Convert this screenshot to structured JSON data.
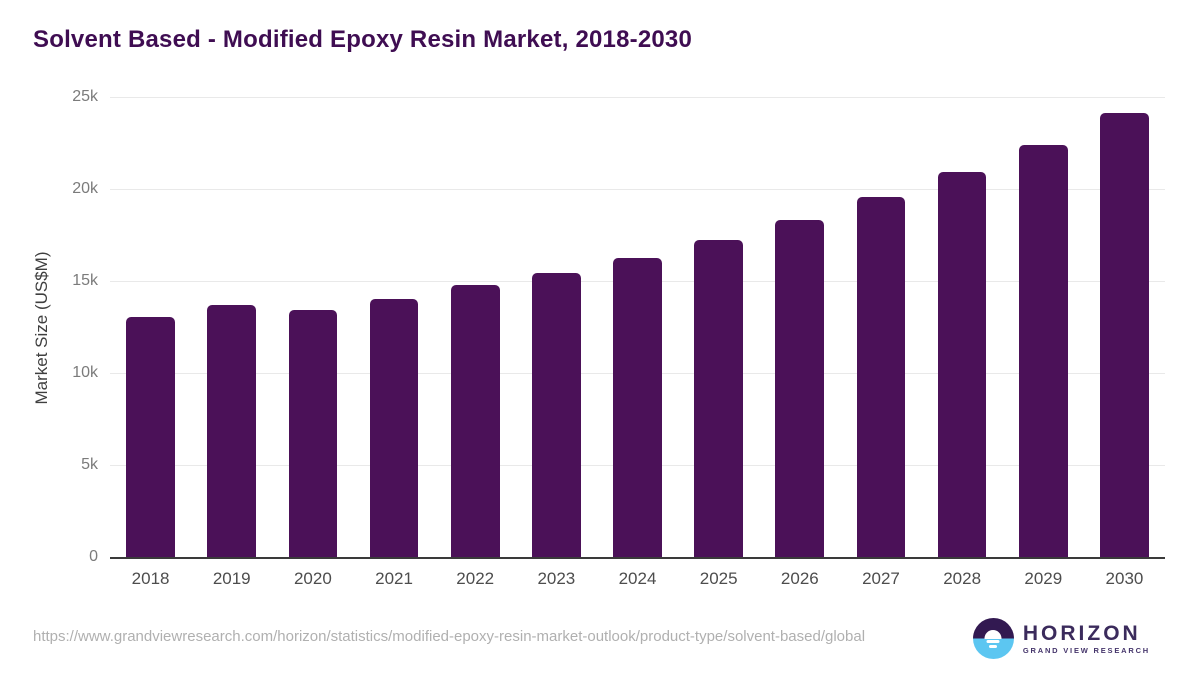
{
  "chart_data": {
    "type": "bar",
    "title": "Solvent Based - Modified Epoxy Resin Market, 2018-2030",
    "categories": [
      "2018",
      "2019",
      "2020",
      "2021",
      "2022",
      "2023",
      "2024",
      "2025",
      "2026",
      "2027",
      "2028",
      "2029",
      "2030"
    ],
    "values": [
      13050,
      13690,
      13430,
      14010,
      14770,
      15450,
      16260,
      17240,
      18300,
      19570,
      20910,
      22400,
      24140
    ],
    "xlabel": "",
    "ylabel": "Market Size (US$M)",
    "ylim": [
      0,
      25000
    ],
    "yticks": [
      {
        "value": 25000,
        "label": "25k"
      },
      {
        "value": 20000,
        "label": "20k"
      },
      {
        "value": 15000,
        "label": "15k"
      },
      {
        "value": 10000,
        "label": "10k"
      },
      {
        "value": 5000,
        "label": "5k"
      },
      {
        "value": 0,
        "label": "0"
      }
    ],
    "grid": true,
    "legend": false,
    "bar_color": "#4b1158"
  },
  "footer": {
    "source_url": "https://www.grandviewresearch.com/horizon/statistics/modified-epoxy-resin-market-outlook/product-type/solvent-based/global",
    "logo": {
      "brand": "HORIZON",
      "tagline": "GRAND VIEW RESEARCH"
    }
  },
  "colors": {
    "title_text": "#3f0d52",
    "bar": "#4b1158",
    "gridline": "#e9e9e9",
    "axis_line": "#3a3a3a",
    "y_tick_text": "#7b7b7b",
    "x_tick_text": "#4d4d4d",
    "url_text": "#b0b0b0",
    "logo_purple": "#321951",
    "logo_blue": "#5cc6f1"
  }
}
